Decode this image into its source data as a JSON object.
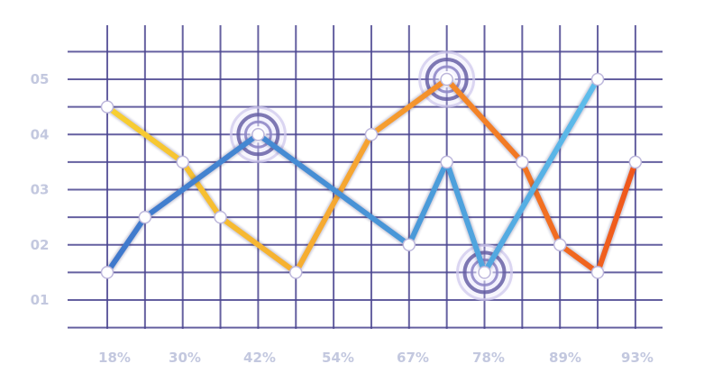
{
  "chart_data": {
    "type": "line",
    "title": "",
    "xlabel": "",
    "ylabel": "",
    "grid": true,
    "x_tick_labels": [
      "18%",
      "30%",
      "42%",
      "54%",
      "67%",
      "78%",
      "89%",
      "93%"
    ],
    "y_tick_labels": [
      "01",
      "02",
      "03",
      "04",
      "05"
    ],
    "x_range": [
      0,
      14
    ],
    "ylim": [
      1,
      5
    ],
    "series": [
      {
        "name": "yellow-orange",
        "color_start": "#f7c934",
        "color_end": "#ef5a1c",
        "points": [
          {
            "x": 0,
            "y": 4.5
          },
          {
            "x": 2,
            "y": 3.5
          },
          {
            "x": 3,
            "y": 2.5
          },
          {
            "x": 5,
            "y": 1.5
          },
          {
            "x": 7,
            "y": 4.0
          },
          {
            "x": 9,
            "y": 5.0
          },
          {
            "x": 11,
            "y": 3.5
          },
          {
            "x": 12,
            "y": 2.0
          },
          {
            "x": 13,
            "y": 1.5
          },
          {
            "x": 14,
            "y": 3.5
          }
        ]
      },
      {
        "name": "blue",
        "color_start": "#3d7ccf",
        "color_end": "#5fc0ee",
        "points": [
          {
            "x": 0,
            "y": 1.5
          },
          {
            "x": 1,
            "y": 2.5
          },
          {
            "x": 4,
            "y": 4.0
          },
          {
            "x": 8,
            "y": 2.0
          },
          {
            "x": 9,
            "y": 3.5
          },
          {
            "x": 10,
            "y": 1.5
          },
          {
            "x": 13,
            "y": 5.0
          }
        ]
      }
    ],
    "highlights": [
      {
        "x": 4,
        "y": 4.0
      },
      {
        "x": 9,
        "y": 5.0
      },
      {
        "x": 10,
        "y": 1.5
      }
    ]
  }
}
